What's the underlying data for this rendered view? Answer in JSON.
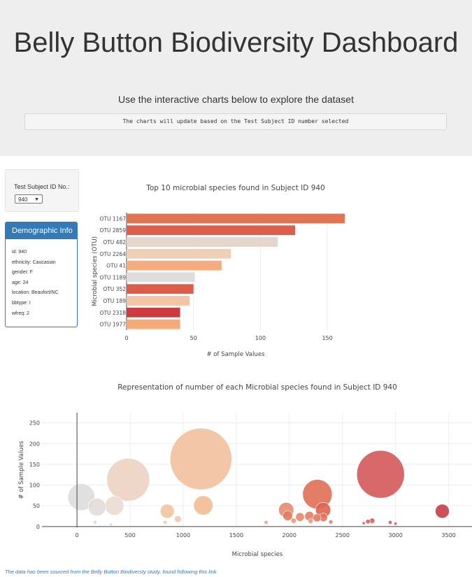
{
  "header": {
    "title": "Belly Button Biodiversity Dashboard",
    "lead": "Use the interactive charts below to explore the dataset",
    "note": "The charts will update based on the Test Subject ID number selected"
  },
  "selector": {
    "label": "Test Subject ID No.:",
    "value": "940"
  },
  "demographics": {
    "title": "Demographic Info",
    "rows": [
      "id: 940",
      "ethnicity: Caucasian",
      "gender: F",
      "age: 24",
      "location: Beaufort/NC",
      "bbtype: I",
      "wfreq: 2"
    ]
  },
  "chart_data": [
    {
      "type": "bar",
      "orientation": "horizontal",
      "title": "Top 10 microbial species found in Subject ID 940",
      "xlabel": "# of Sample Values",
      "ylabel": "Microbial species (OTU)",
      "xlim": [
        0,
        163
      ],
      "xticks": [
        0,
        50,
        100,
        150
      ],
      "categories": [
        "OTU 1167",
        "OTU 2859",
        "OTU 482",
        "OTU 2264",
        "OTU 41",
        "OTU 1189",
        "OTU 352",
        "OTU 189",
        "OTU 2318",
        "OTU 1977"
      ],
      "values": [
        163,
        126,
        113,
        78,
        71,
        51,
        50,
        47,
        40,
        40
      ],
      "colors": [
        "#e07555",
        "#dc5f4b",
        "#e4d6cc",
        "#efcfb6",
        "#f4ac7e",
        "#dddddd",
        "#dd5d4b",
        "#f2c5a7",
        "#cc3b40",
        "#f5aa78"
      ]
    },
    {
      "type": "scatter",
      "subtype": "bubble",
      "title": "Representation of number of each Microbial species found in Subject ID 940",
      "xlabel": "Microbial species",
      "ylabel": "# of Sample Values",
      "xlim": [
        -330,
        3720
      ],
      "ylim": [
        -2,
        295
      ],
      "xticks": [
        0,
        500,
        1000,
        1500,
        2000,
        2500,
        3000,
        3500
      ],
      "yticks": [
        0,
        50,
        100,
        150,
        200,
        250
      ],
      "points": [
        {
          "x": 41,
          "y": 71,
          "c": "#dddddd"
        },
        {
          "x": 189,
          "y": 47,
          "c": "#e2ddda"
        },
        {
          "x": 352,
          "y": 50,
          "c": "#e9dcd2"
        },
        {
          "x": 482,
          "y": 113,
          "c": "#ecd3c2"
        },
        {
          "x": 1167,
          "y": 163,
          "c": "#f2c09f"
        },
        {
          "x": 1189,
          "y": 51,
          "c": "#f3bc93"
        },
        {
          "x": 850,
          "y": 37,
          "c": "#f2c4a0"
        },
        {
          "x": 950,
          "y": 18,
          "c": "#f1c8a9"
        },
        {
          "x": 170,
          "y": 10,
          "c": "#dedad8"
        },
        {
          "x": 320,
          "y": 5,
          "c": "#e4dcd6"
        },
        {
          "x": 830,
          "y": 10,
          "c": "#f0cbb1"
        },
        {
          "x": 1970,
          "y": 40,
          "c": "#e8896e"
        },
        {
          "x": 1985,
          "y": 26,
          "c": "#e27c60"
        },
        {
          "x": 2040,
          "y": 14,
          "c": "#ea9a7c"
        },
        {
          "x": 2100,
          "y": 23,
          "c": "#e6876b"
        },
        {
          "x": 2190,
          "y": 25,
          "c": "#e28067"
        },
        {
          "x": 2200,
          "y": 13,
          "c": "#ea9b80"
        },
        {
          "x": 2264,
          "y": 78,
          "c": "#df6f55"
        },
        {
          "x": 2260,
          "y": 21,
          "c": "#e07961"
        },
        {
          "x": 2318,
          "y": 40,
          "c": "#dd654f"
        },
        {
          "x": 2320,
          "y": 22,
          "c": "#e07460"
        },
        {
          "x": 2390,
          "y": 11,
          "c": "#e47f6a"
        },
        {
          "x": 1780,
          "y": 10,
          "c": "#f0a585"
        },
        {
          "x": 2859,
          "y": 126,
          "c": "#d4585a"
        },
        {
          "x": 2740,
          "y": 12,
          "c": "#d8615c"
        },
        {
          "x": 2780,
          "y": 14,
          "c": "#d6625c"
        },
        {
          "x": 2700,
          "y": 8,
          "c": "#dc6a60"
        },
        {
          "x": 2950,
          "y": 10,
          "c": "#d35c5c"
        },
        {
          "x": 3440,
          "y": 37,
          "c": "#c73d46"
        },
        {
          "x": 3000,
          "y": 7,
          "c": "#d45e5e"
        }
      ]
    }
  ],
  "footer": {
    "text": "The data has been sourced from the Belly Button Biodiversty study, found following this link"
  }
}
